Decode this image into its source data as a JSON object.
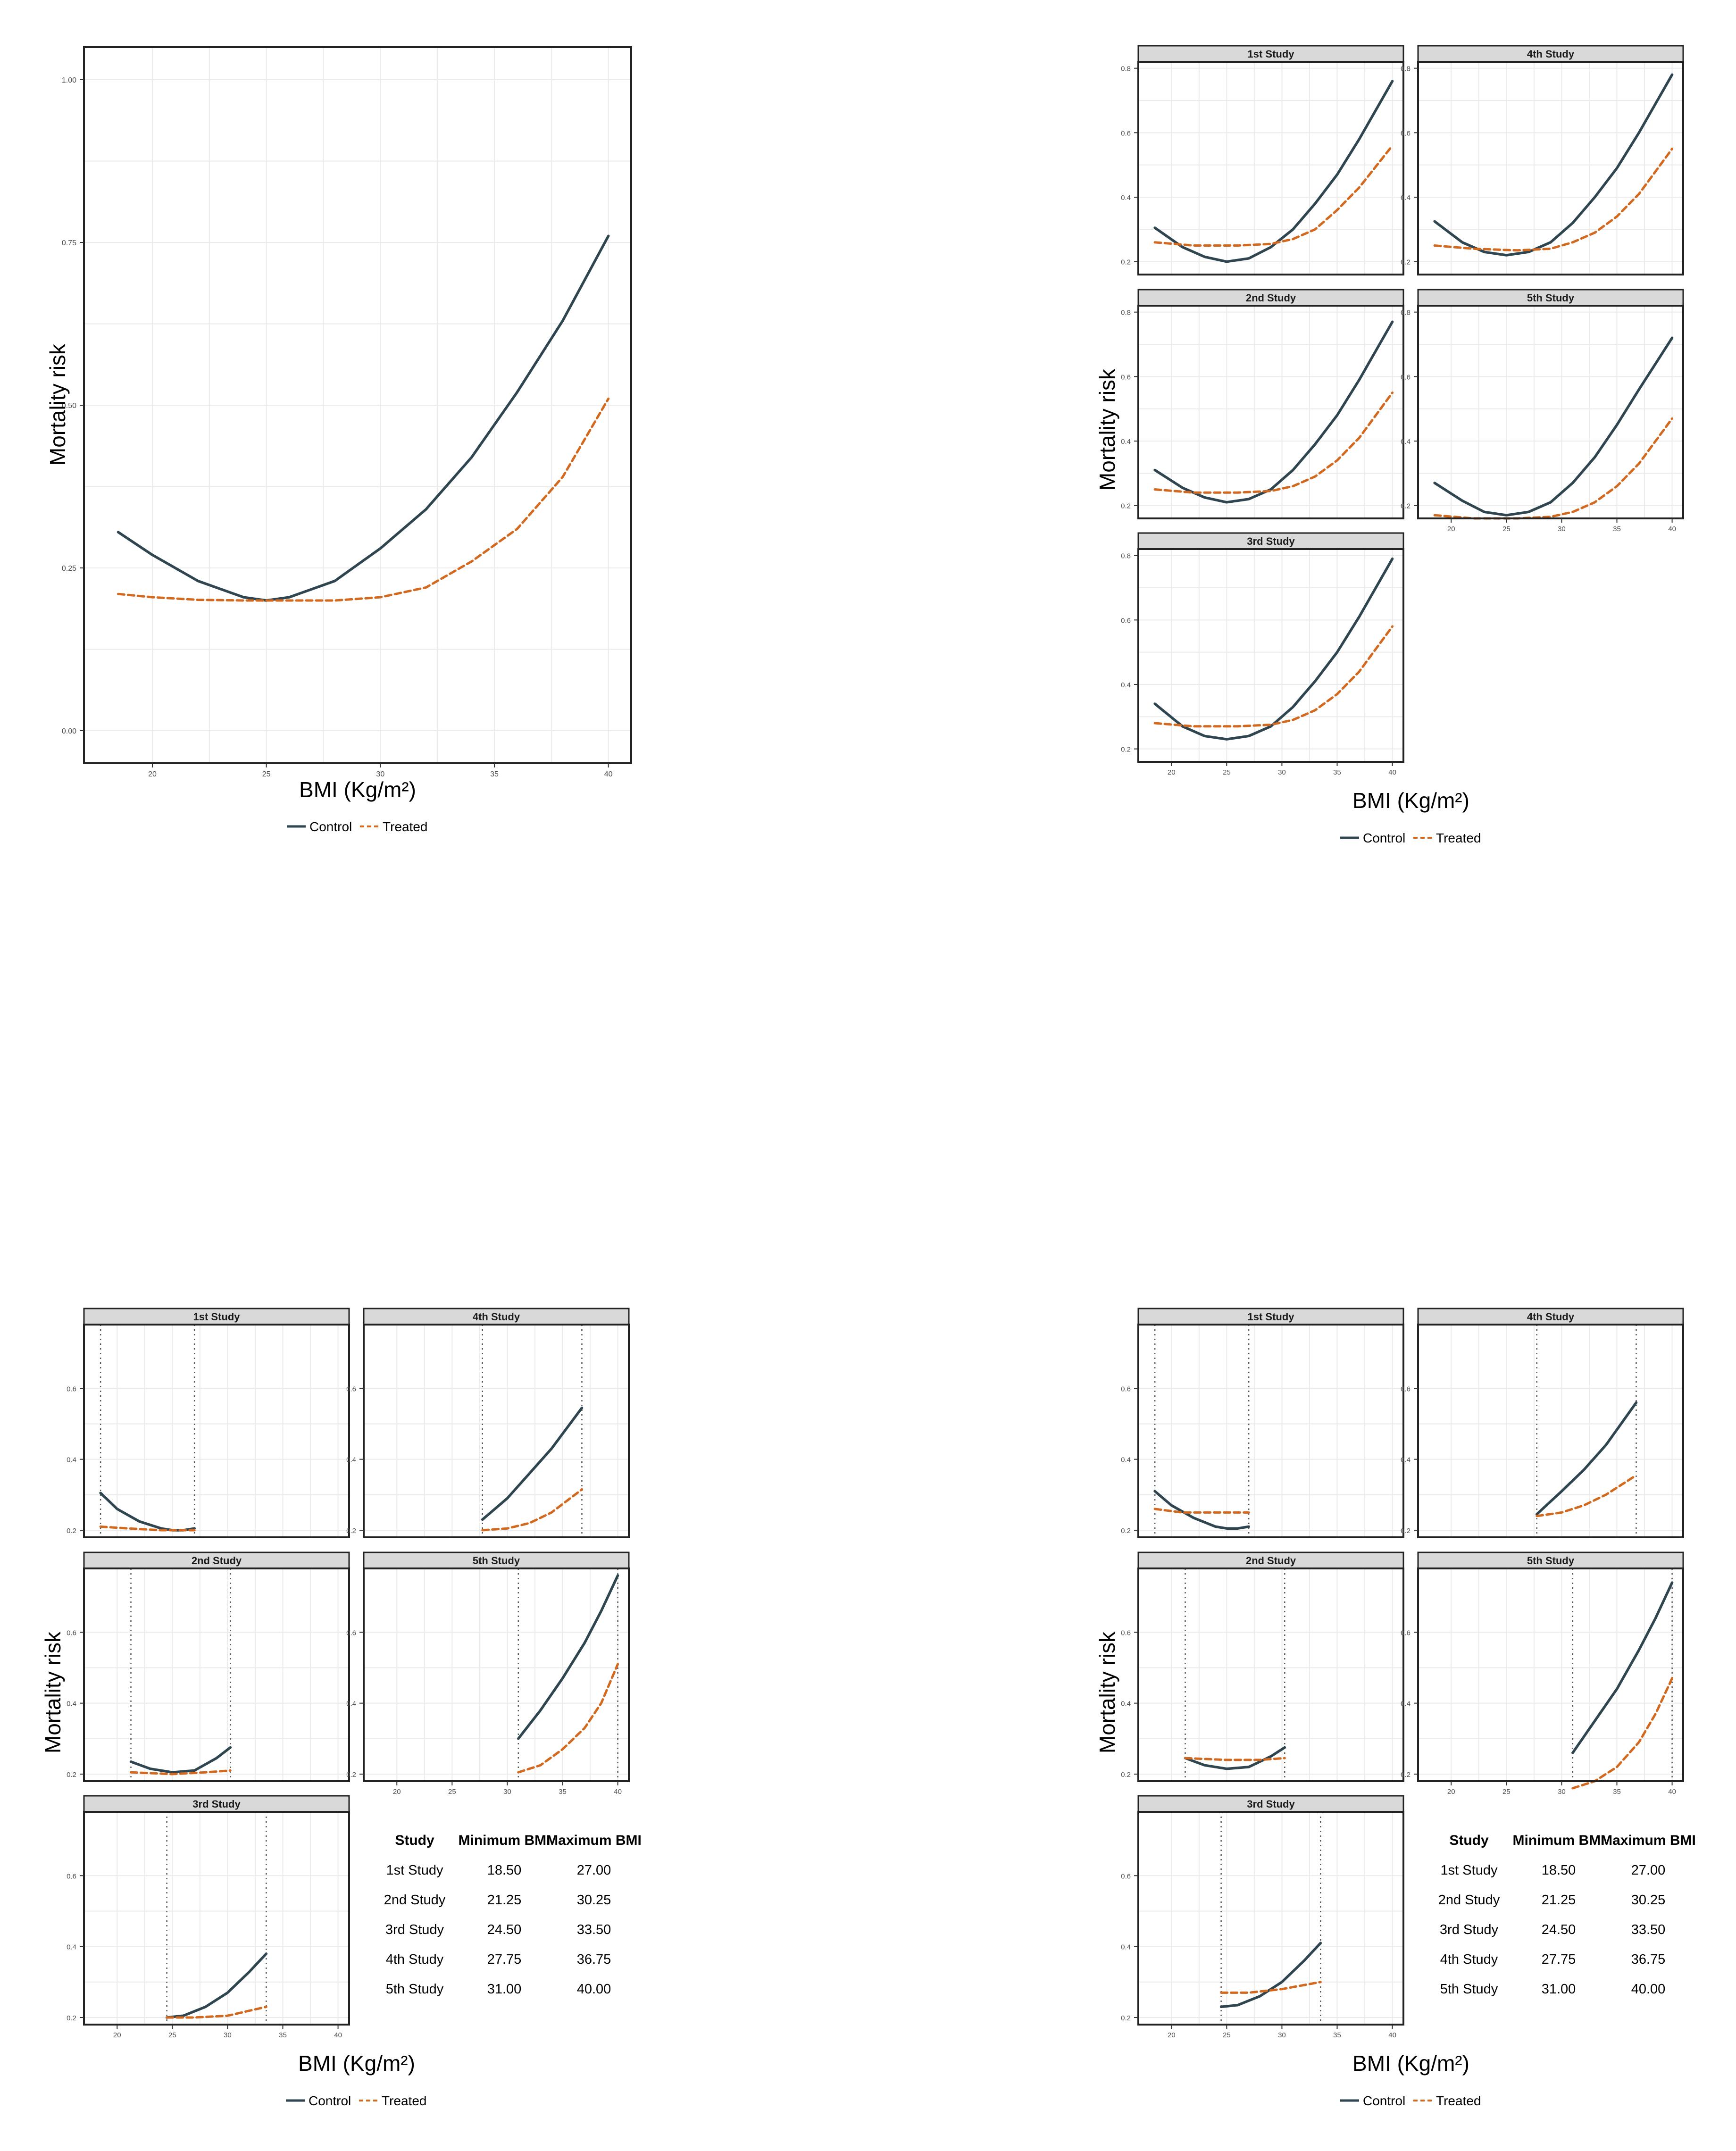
{
  "labels": {
    "ylabel": "Mortality risk",
    "xlabel": "BMI (Kg/m²)",
    "legend_control": "Control",
    "legend_treated": "Treated",
    "table_headers": [
      "Study",
      "Minimum BMI",
      "Maximum BMI"
    ]
  },
  "colors": {
    "control": "#2f4550",
    "treated": "#d2691e",
    "strip": "#d9d9d9",
    "grid": "#ebebeb",
    "vline": "#555555"
  },
  "chart_data": [
    {
      "type": "line",
      "id": "pooled",
      "xlabel": "BMI (Kg/m²)",
      "ylabel": "Mortality risk",
      "xlim": [
        17,
        41
      ],
      "ylim": [
        -0.05,
        1.05
      ],
      "x_ticks": [
        "20",
        "25",
        "30",
        "35",
        "40"
      ],
      "y_ticks": [
        "0.00",
        "0.25",
        "0.50",
        "0.75",
        "1.00"
      ],
      "legend": "bottom",
      "series": [
        {
          "name": "Control",
          "x": [
            18.5,
            20,
            22,
            24,
            25,
            26,
            28,
            30,
            32,
            34,
            36,
            38,
            40
          ],
          "y": [
            0.305,
            0.27,
            0.23,
            0.205,
            0.2,
            0.205,
            0.23,
            0.28,
            0.34,
            0.42,
            0.52,
            0.63,
            0.76
          ]
        },
        {
          "name": "Treated",
          "x": [
            18.5,
            20,
            22,
            24,
            26,
            28,
            30,
            32,
            34,
            36,
            38,
            40
          ],
          "y": [
            0.21,
            0.205,
            0.201,
            0.2,
            0.2,
            0.2,
            0.205,
            0.22,
            0.26,
            0.31,
            0.39,
            0.51
          ]
        }
      ]
    },
    {
      "type": "line",
      "id": "by-study-full",
      "xlabel": "BMI (Kg/m²)",
      "ylabel": "Mortality risk",
      "xlim": [
        17,
        41
      ],
      "ylim": [
        0.16,
        0.82
      ],
      "x_ticks": [
        "20",
        "25",
        "30",
        "35",
        "40"
      ],
      "y_ticks": [
        "0.2",
        "0.4",
        "0.6",
        "0.8"
      ],
      "legend": "bottom",
      "panels": [
        {
          "title": "1st Study",
          "series": [
            {
              "name": "Control",
              "x": [
                18.5,
                21,
                23,
                25,
                27,
                29,
                31,
                33,
                35,
                37,
                40
              ],
              "y": [
                0.305,
                0.245,
                0.215,
                0.2,
                0.21,
                0.245,
                0.3,
                0.38,
                0.47,
                0.58,
                0.76
              ]
            },
            {
              "name": "Treated",
              "x": [
                18.5,
                22,
                26,
                29,
                31,
                33,
                35,
                37,
                40
              ],
              "y": [
                0.26,
                0.25,
                0.25,
                0.255,
                0.27,
                0.3,
                0.36,
                0.43,
                0.56
              ]
            }
          ]
        },
        {
          "title": "4th Study",
          "series": [
            {
              "name": "Control",
              "x": [
                18.5,
                21,
                23,
                25,
                27,
                29,
                31,
                33,
                35,
                37,
                40
              ],
              "y": [
                0.325,
                0.26,
                0.23,
                0.22,
                0.23,
                0.26,
                0.32,
                0.4,
                0.49,
                0.6,
                0.78
              ]
            },
            {
              "name": "Treated",
              "x": [
                18.5,
                22,
                26,
                29,
                31,
                33,
                35,
                37,
                40
              ],
              "y": [
                0.25,
                0.24,
                0.235,
                0.24,
                0.26,
                0.29,
                0.34,
                0.41,
                0.55
              ]
            }
          ]
        },
        {
          "title": "2nd Study",
          "series": [
            {
              "name": "Control",
              "x": [
                18.5,
                21,
                23,
                25,
                27,
                29,
                31,
                33,
                35,
                37,
                40
              ],
              "y": [
                0.31,
                0.255,
                0.225,
                0.21,
                0.22,
                0.25,
                0.31,
                0.39,
                0.48,
                0.59,
                0.77
              ]
            },
            {
              "name": "Treated",
              "x": [
                18.5,
                22,
                26,
                29,
                31,
                33,
                35,
                37,
                40
              ],
              "y": [
                0.25,
                0.24,
                0.24,
                0.245,
                0.26,
                0.29,
                0.34,
                0.41,
                0.55
              ]
            }
          ]
        },
        {
          "title": "5th Study",
          "series": [
            {
              "name": "Control",
              "x": [
                18.5,
                21,
                23,
                25,
                27,
                29,
                31,
                33,
                35,
                37,
                40
              ],
              "y": [
                0.27,
                0.215,
                0.18,
                0.17,
                0.18,
                0.21,
                0.27,
                0.35,
                0.45,
                0.56,
                0.72
              ]
            },
            {
              "name": "Treated",
              "x": [
                18.5,
                22,
                26,
                29,
                31,
                33,
                35,
                37,
                40
              ],
              "y": [
                0.17,
                0.16,
                0.16,
                0.165,
                0.18,
                0.21,
                0.26,
                0.33,
                0.47
              ]
            }
          ]
        },
        {
          "title": "3rd Study",
          "series": [
            {
              "name": "Control",
              "x": [
                18.5,
                21,
                23,
                25,
                27,
                29,
                31,
                33,
                35,
                37,
                40
              ],
              "y": [
                0.34,
                0.27,
                0.24,
                0.23,
                0.24,
                0.27,
                0.33,
                0.41,
                0.5,
                0.61,
                0.79
              ]
            },
            {
              "name": "Treated",
              "x": [
                18.5,
                22,
                26,
                29,
                31,
                33,
                35,
                37,
                40
              ],
              "y": [
                0.28,
                0.27,
                0.27,
                0.275,
                0.29,
                0.32,
                0.37,
                0.44,
                0.58
              ]
            }
          ]
        }
      ]
    },
    {
      "type": "line",
      "id": "by-study-restricted-a",
      "xlabel": "BMI (Kg/m²)",
      "ylabel": "Mortality risk",
      "xlim": [
        17,
        41
      ],
      "ylim": [
        0.18,
        0.78
      ],
      "x_ticks": [
        "20",
        "25",
        "30",
        "35",
        "40"
      ],
      "y_ticks": [
        "0.2",
        "0.4",
        "0.6"
      ],
      "legend": "bottom",
      "table": [
        [
          "1st Study",
          "18.50",
          "27.00"
        ],
        [
          "2nd Study",
          "21.25",
          "30.25"
        ],
        [
          "3rd Study",
          "24.50",
          "33.50"
        ],
        [
          "4th Study",
          "27.75",
          "36.75"
        ],
        [
          "5th Study",
          "31.00",
          "40.00"
        ]
      ],
      "panels": [
        {
          "title": "1st Study",
          "vlines": [
            18.5,
            27.0
          ],
          "series": [
            {
              "name": "Control",
              "x": [
                18.5,
                20,
                22,
                24,
                25,
                26,
                27
              ],
              "y": [
                0.305,
                0.26,
                0.225,
                0.205,
                0.2,
                0.2,
                0.205
              ]
            },
            {
              "name": "Treated",
              "x": [
                18.5,
                21,
                24,
                27
              ],
              "y": [
                0.21,
                0.205,
                0.2,
                0.2
              ]
            }
          ]
        },
        {
          "title": "4th Study",
          "vlines": [
            27.75,
            36.75
          ],
          "series": [
            {
              "name": "Control",
              "x": [
                27.75,
                30,
                32,
                34,
                36.75
              ],
              "y": [
                0.23,
                0.29,
                0.36,
                0.43,
                0.545
              ]
            },
            {
              "name": "Treated",
              "x": [
                27.75,
                30,
                32,
                34,
                36.75
              ],
              "y": [
                0.2,
                0.205,
                0.22,
                0.25,
                0.315
              ]
            }
          ]
        },
        {
          "title": "2nd Study",
          "vlines": [
            21.25,
            30.25
          ],
          "series": [
            {
              "name": "Control",
              "x": [
                21.25,
                23,
                25,
                27,
                29,
                30.25
              ],
              "y": [
                0.235,
                0.215,
                0.205,
                0.21,
                0.245,
                0.275
              ]
            },
            {
              "name": "Treated",
              "x": [
                21.25,
                25,
                28,
                30.25
              ],
              "y": [
                0.205,
                0.2,
                0.205,
                0.21
              ]
            }
          ]
        },
        {
          "title": "5th Study",
          "vlines": [
            31.0,
            40.0
          ],
          "series": [
            {
              "name": "Control",
              "x": [
                31,
                33,
                35,
                37,
                38.5,
                40
              ],
              "y": [
                0.3,
                0.38,
                0.47,
                0.57,
                0.66,
                0.76
              ]
            },
            {
              "name": "Treated",
              "x": [
                31,
                33,
                35,
                37,
                38.5,
                40
              ],
              "y": [
                0.205,
                0.225,
                0.27,
                0.33,
                0.4,
                0.51
              ]
            }
          ]
        },
        {
          "title": "3rd Study",
          "vlines": [
            24.5,
            33.5
          ],
          "series": [
            {
              "name": "Control",
              "x": [
                24.5,
                26,
                28,
                30,
                32,
                33.5
              ],
              "y": [
                0.2,
                0.205,
                0.23,
                0.27,
                0.33,
                0.38
              ]
            },
            {
              "name": "Treated",
              "x": [
                24.5,
                27,
                30,
                33.5
              ],
              "y": [
                0.2,
                0.2,
                0.205,
                0.23
              ]
            }
          ]
        }
      ]
    },
    {
      "type": "line",
      "id": "by-study-restricted-b",
      "xlabel": "BMI (Kg/m²)",
      "ylabel": "Mortality risk",
      "xlim": [
        17,
        41
      ],
      "ylim": [
        0.18,
        0.78
      ],
      "x_ticks": [
        "20",
        "25",
        "30",
        "35",
        "40"
      ],
      "y_ticks": [
        "0.2",
        "0.4",
        "0.6"
      ],
      "legend": "bottom",
      "table": [
        [
          "1st Study",
          "18.50",
          "27.00"
        ],
        [
          "2nd Study",
          "21.25",
          "30.25"
        ],
        [
          "3rd Study",
          "24.50",
          "33.50"
        ],
        [
          "4th Study",
          "27.75",
          "36.75"
        ],
        [
          "5th Study",
          "31.00",
          "40.00"
        ]
      ],
      "panels": [
        {
          "title": "1st Study",
          "vlines": [
            18.5,
            27.0
          ],
          "series": [
            {
              "name": "Control",
              "x": [
                18.5,
                20,
                22,
                24,
                25,
                26,
                27
              ],
              "y": [
                0.31,
                0.27,
                0.235,
                0.21,
                0.205,
                0.205,
                0.21
              ]
            },
            {
              "name": "Treated",
              "x": [
                18.5,
                21,
                24,
                27
              ],
              "y": [
                0.26,
                0.25,
                0.25,
                0.25
              ]
            }
          ]
        },
        {
          "title": "4th Study",
          "vlines": [
            27.75,
            36.75
          ],
          "series": [
            {
              "name": "Control",
              "x": [
                27.75,
                30,
                32,
                34,
                36.75
              ],
              "y": [
                0.245,
                0.31,
                0.37,
                0.44,
                0.56
              ]
            },
            {
              "name": "Treated",
              "x": [
                27.75,
                30,
                32,
                34,
                36.75
              ],
              "y": [
                0.24,
                0.25,
                0.27,
                0.3,
                0.355
              ]
            }
          ]
        },
        {
          "title": "2nd Study",
          "vlines": [
            21.25,
            30.25
          ],
          "series": [
            {
              "name": "Control",
              "x": [
                21.25,
                23,
                25,
                27,
                29,
                30.25
              ],
              "y": [
                0.245,
                0.225,
                0.215,
                0.22,
                0.25,
                0.275
              ]
            },
            {
              "name": "Treated",
              "x": [
                21.25,
                25,
                28,
                30.25
              ],
              "y": [
                0.245,
                0.24,
                0.24,
                0.245
              ]
            }
          ]
        },
        {
          "title": "5th Study",
          "vlines": [
            31.0,
            40.0
          ],
          "series": [
            {
              "name": "Control",
              "x": [
                31,
                33,
                35,
                37,
                38.5,
                40
              ],
              "y": [
                0.26,
                0.35,
                0.44,
                0.55,
                0.64,
                0.74
              ]
            },
            {
              "name": "Treated",
              "x": [
                31,
                33,
                35,
                37,
                38.5,
                40
              ],
              "y": [
                0.16,
                0.18,
                0.22,
                0.29,
                0.37,
                0.47
              ]
            }
          ]
        },
        {
          "title": "3rd Study",
          "vlines": [
            24.5,
            33.5
          ],
          "series": [
            {
              "name": "Control",
              "x": [
                24.5,
                26,
                28,
                30,
                32,
                33.5
              ],
              "y": [
                0.23,
                0.235,
                0.26,
                0.3,
                0.36,
                0.41
              ]
            },
            {
              "name": "Treated",
              "x": [
                24.5,
                27,
                30,
                33.5
              ],
              "y": [
                0.27,
                0.27,
                0.28,
                0.3
              ]
            }
          ]
        }
      ]
    }
  ]
}
